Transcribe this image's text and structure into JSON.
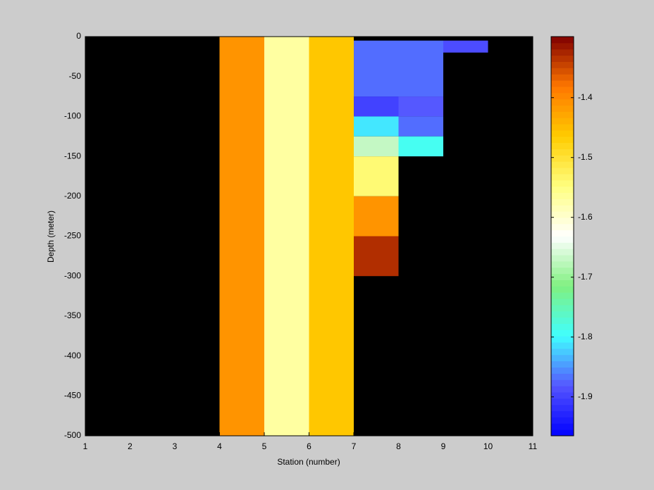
{
  "chart_data": {
    "type": "heatmap",
    "xlabel": "Station (number)",
    "ylabel": "Depth (meter)",
    "xlim": [
      1,
      11
    ],
    "ylim": [
      -500,
      0
    ],
    "xticks": [
      1,
      2,
      3,
      4,
      5,
      6,
      7,
      8,
      9,
      10,
      11
    ],
    "yticks": [
      0,
      -50,
      -100,
      -150,
      -200,
      -250,
      -300,
      -350,
      -400,
      -450,
      -500
    ],
    "background": "#000000",
    "colormap": [
      "#0000ff",
      "#5555ff",
      "#40ffff",
      "#80f080",
      "#ffffff",
      "#ffff80",
      "#ffcc00",
      "#ff7700",
      "#800000"
    ],
    "clim": [
      -1.965,
      -1.298
    ],
    "colorbar_ticks": [
      -1.4,
      -1.5,
      -1.6,
      -1.7,
      -1.8,
      -1.9
    ],
    "cells": [
      {
        "x0": 4,
        "x1": 5,
        "y0": 0,
        "y1": -500,
        "value": -1.41
      },
      {
        "x0": 5,
        "x1": 6,
        "y0": 0,
        "y1": -500,
        "value": -1.57
      },
      {
        "x0": 6,
        "x1": 7,
        "y0": 0,
        "y1": -500,
        "value": -1.46
      },
      {
        "x0": 7,
        "x1": 8,
        "y0": -5,
        "y1": -75,
        "value": -1.87
      },
      {
        "x0": 7,
        "x1": 8,
        "y0": -75,
        "y1": -100,
        "value": -1.9
      },
      {
        "x0": 7,
        "x1": 8,
        "y0": -100,
        "y1": -125,
        "value": -1.81
      },
      {
        "x0": 7,
        "x1": 8,
        "y0": -125,
        "y1": -150,
        "value": -1.67
      },
      {
        "x0": 7,
        "x1": 8,
        "y0": -150,
        "y1": -200,
        "value": -1.54
      },
      {
        "x0": 7,
        "x1": 8,
        "y0": -200,
        "y1": -250,
        "value": -1.41
      },
      {
        "x0": 7,
        "x1": 8,
        "y0": -250,
        "y1": -300,
        "value": -1.33
      },
      {
        "x0": 8,
        "x1": 9,
        "y0": -5,
        "y1": -75,
        "value": -1.87
      },
      {
        "x0": 8,
        "x1": 9,
        "y0": -75,
        "y1": -100,
        "value": -1.88
      },
      {
        "x0": 8,
        "x1": 9,
        "y0": -100,
        "y1": -125,
        "value": -1.87
      },
      {
        "x0": 8,
        "x1": 9,
        "y0": -125,
        "y1": -150,
        "value": -1.79
      },
      {
        "x0": 9,
        "x1": 10,
        "y0": -5,
        "y1": -20,
        "value": -1.89
      }
    ]
  }
}
